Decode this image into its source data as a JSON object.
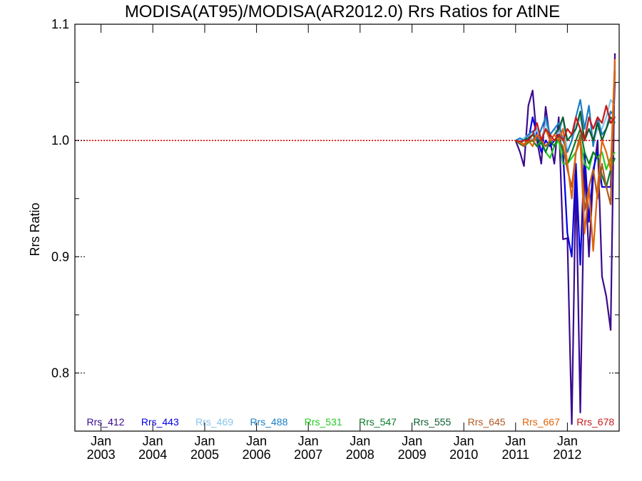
{
  "chart_data": {
    "type": "line",
    "title": "MODISA(AT95)/MODISA(AR2012.0)  Rrs Ratios for AtlNE",
    "xlabel": "",
    "ylabel": "Rrs Ratio",
    "xlim": [
      "2002-07-01",
      "2012-12-31"
    ],
    "ylim": [
      0.75,
      1.1
    ],
    "y_ticks": [
      {
        "value": 0.8,
        "label": "0.8"
      },
      {
        "value": 0.9,
        "label": "0.9"
      },
      {
        "value": 1.0,
        "label": "1.0"
      },
      {
        "value": 1.1,
        "label": "1.1"
      }
    ],
    "x_ticks": [
      {
        "date": "2003-01-01",
        "month": "Jan",
        "year": "2003"
      },
      {
        "date": "2004-01-01",
        "month": "Jan",
        "year": "2004"
      },
      {
        "date": "2005-01-01",
        "month": "Jan",
        "year": "2005"
      },
      {
        "date": "2006-01-01",
        "month": "Jan",
        "year": "2006"
      },
      {
        "date": "2007-01-01",
        "month": "Jan",
        "year": "2007"
      },
      {
        "date": "2008-01-01",
        "month": "Jan",
        "year": "2008"
      },
      {
        "date": "2009-01-01",
        "month": "Jan",
        "year": "2009"
      },
      {
        "date": "2010-01-01",
        "month": "Jan",
        "year": "2010"
      },
      {
        "date": "2011-01-01",
        "month": "Jan",
        "year": "2011"
      },
      {
        "date": "2012-01-01",
        "month": "Jan",
        "year": "2012"
      }
    ],
    "reference_line": {
      "y": 1.0,
      "color": "#e00000",
      "style": "dotted"
    },
    "x": [
      "2011-01-01",
      "2011-02-01",
      "2011-03-01",
      "2011-04-01",
      "2011-05-01",
      "2011-06-01",
      "2011-07-01",
      "2011-08-01",
      "2011-09-01",
      "2011-10-01",
      "2011-11-01",
      "2011-12-01",
      "2012-01-01",
      "2012-02-01",
      "2012-03-01",
      "2012-04-01",
      "2012-05-01",
      "2012-06-01",
      "2012-07-01",
      "2012-08-01",
      "2012-09-01",
      "2012-10-01",
      "2012-11-01",
      "2012-12-01"
    ],
    "series": [
      {
        "name": "Rrs_412",
        "color": "#3b0a8c",
        "values": [
          1.0,
          0.99,
          0.978,
          1.03,
          1.043,
          1.0,
          0.98,
          1.029,
          1.0,
          0.98,
          1.02,
          0.915,
          0.916,
          0.756,
          0.97,
          0.766,
          0.98,
          0.9,
          0.97,
          1.0,
          0.883,
          0.866,
          0.837,
          1.075
        ]
      },
      {
        "name": "Rrs_443",
        "color": "#0000e6",
        "values": [
          1.0,
          0.998,
          0.995,
          1.0,
          1.02,
          1.005,
          0.99,
          1.0,
          0.995,
          1.0,
          1.005,
          0.99,
          0.92,
          0.9,
          0.98,
          0.893,
          0.99,
          0.93,
          0.975,
          0.99,
          0.96,
          0.96,
          0.96,
          1.05
        ]
      },
      {
        "name": "Rrs_469",
        "color": "#87c5e8",
        "values": [
          1.0,
          1.0,
          1.002,
          1.005,
          1.0,
          1.01,
          1.0,
          1.015,
          1.005,
          1.01,
          1.005,
          1.02,
          0.99,
          1.0,
          1.01,
          1.02,
          1.0,
          1.01,
          1.0,
          1.01,
          1.01,
          1.02,
          1.035,
          1.03
        ]
      },
      {
        "name": "Rrs_488",
        "color": "#1a7fc4",
        "values": [
          1.0,
          1.002,
          1.0,
          1.005,
          1.008,
          1.0,
          1.01,
          1.02,
          1.005,
          1.01,
          1.015,
          1.0,
          0.99,
          1.0,
          1.02,
          1.035,
          1.01,
          1.03,
          0.995,
          1.02,
          1.005,
          1.01,
          1.025,
          1.02
        ]
      },
      {
        "name": "Rrs_531",
        "color": "#22cc22",
        "values": [
          1.0,
          0.998,
          0.995,
          0.998,
          1.0,
          0.995,
          1.0,
          0.99,
          0.985,
          0.995,
          1.0,
          0.98,
          0.98,
          0.985,
          0.99,
          1.0,
          0.98,
          0.975,
          0.99,
          0.985,
          0.99,
          0.975,
          0.985,
          0.99
        ]
      },
      {
        "name": "Rrs_547",
        "color": "#0a7a2a",
        "values": [
          1.0,
          0.997,
          0.995,
          0.999,
          1.0,
          0.995,
          0.998,
          0.99,
          1.0,
          0.995,
          1.005,
          0.99,
          0.98,
          0.99,
          1.0,
          1.01,
          0.99,
          0.98,
          0.99,
          0.985,
          0.97,
          0.96,
          0.975,
          0.985
        ]
      },
      {
        "name": "Rrs_555",
        "color": "#0d5c2c",
        "values": [
          1.0,
          0.998,
          1.0,
          1.002,
          1.005,
          1.0,
          1.0,
          1.01,
          1.0,
          1.005,
          1.01,
          1.02,
          1.0,
          1.005,
          1.01,
          1.025,
          1.0,
          1.01,
          1.0,
          1.015,
          1.0,
          1.01,
          1.02,
          1.015
        ]
      },
      {
        "name": "Rrs_645",
        "color": "#b05a22",
        "values": [
          1.0,
          0.998,
          0.995,
          1.0,
          1.0,
          1.005,
          1.0,
          0.995,
          1.0,
          1.005,
          1.0,
          0.995,
          0.975,
          0.96,
          0.99,
          1.005,
          0.94,
          0.96,
          0.975,
          0.95,
          0.98,
          0.96,
          0.945,
          1.06
        ]
      },
      {
        "name": "Rrs_667",
        "color": "#e0640a",
        "values": [
          1.0,
          0.998,
          0.997,
          1.0,
          0.995,
          1.005,
          1.0,
          1.01,
          1.0,
          1.005,
          1.0,
          1.01,
          0.98,
          0.95,
          0.99,
          1.0,
          0.92,
          0.96,
          0.905,
          0.96,
          1.0,
          0.99,
          0.975,
          1.07
        ]
      },
      {
        "name": "Rrs_678",
        "color": "#c81a1a",
        "values": [
          1.0,
          0.999,
          1.0,
          1.0,
          1.005,
          1.015,
          1.0,
          1.01,
          1.005,
          1.0,
          1.005,
          1.0,
          1.01,
          1.005,
          1.02,
          1.01,
          1.0,
          1.02,
          1.01,
          1.02,
          1.015,
          1.03,
          1.015,
          1.02
        ]
      }
    ]
  }
}
